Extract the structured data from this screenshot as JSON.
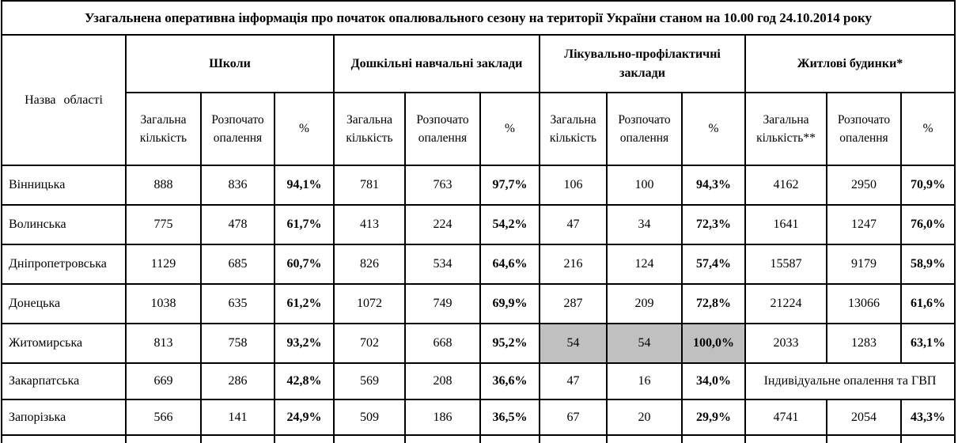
{
  "title": "Узагальнена оперативна інформація про початок опалювального сезону на території України станом на 10.00 год 24.10.2014 року",
  "table": {
    "region_header": "Назва області",
    "groups": [
      {
        "label": "Школи",
        "cols": [
          "Загальна кількість",
          "Розпочато опалення",
          "%"
        ]
      },
      {
        "label": "Дошкільні навчальні заклади",
        "cols": [
          "Загальна кількість",
          "Розпочато опалення",
          "%"
        ]
      },
      {
        "label": "Лікувально-профілактичні заклади",
        "cols": [
          "Загальна кількість",
          "Розпочато опалення",
          "%"
        ]
      },
      {
        "label": "Житлові будинки*",
        "cols": [
          "Загальна кількість**",
          "Розпочато опалення",
          "%"
        ]
      }
    ],
    "rows": [
      {
        "region": "Вінницька",
        "cells": [
          "888",
          "836",
          "94,1%",
          "781",
          "763",
          "97,7%",
          "106",
          "100",
          "94,3%",
          "4162",
          "2950",
          "70,9%"
        ]
      },
      {
        "region": "Волинська",
        "cells": [
          "775",
          "478",
          "61,7%",
          "413",
          "224",
          "54,2%",
          "47",
          "34",
          "72,3%",
          "1641",
          "1247",
          "76,0%"
        ]
      },
      {
        "region": "Дніпропетровська",
        "cells": [
          "1129",
          "685",
          "60,7%",
          "826",
          "534",
          "64,6%",
          "216",
          "124",
          "57,4%",
          "15587",
          "9179",
          "58,9%"
        ]
      },
      {
        "region": "Донецька",
        "cells": [
          "1038",
          "635",
          "61,2%",
          "1072",
          "749",
          "69,9%",
          "287",
          "209",
          "72,8%",
          "21224",
          "13066",
          "61,6%"
        ]
      },
      {
        "region": "Житомирська",
        "cells": [
          "813",
          "758",
          "93,2%",
          "702",
          "668",
          "95,2%",
          "54",
          "54",
          "100,0%",
          "2033",
          "1283",
          "63,1%"
        ],
        "highlight": [
          6,
          7,
          8
        ]
      },
      {
        "region": "Закарпатська",
        "cells": [
          "669",
          "286",
          "42,8%",
          "569",
          "208",
          "36,6%",
          "47",
          "16",
          "34,0%"
        ],
        "merged_note": "Індивідуальне опалення та ГВП"
      },
      {
        "region": "Запорізька",
        "cells": [
          "566",
          "141",
          "24,9%",
          "509",
          "186",
          "36,5%",
          "67",
          "20",
          "29,9%",
          "4741",
          "2054",
          "43,3%"
        ]
      }
    ],
    "highlight_color": "#c0c0c0"
  }
}
